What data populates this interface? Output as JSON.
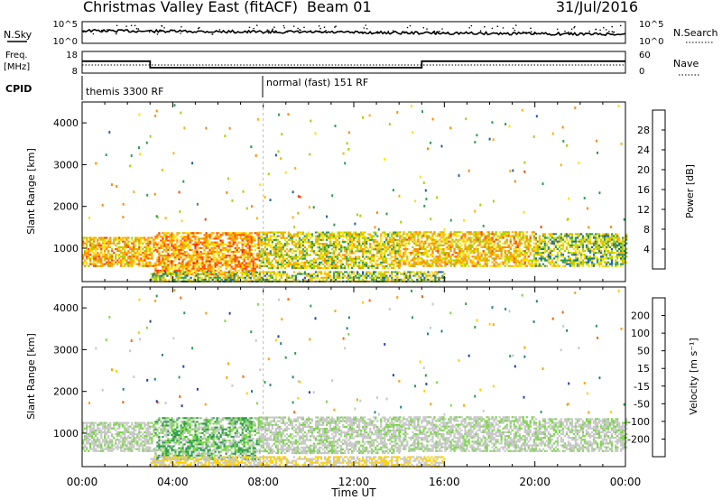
{
  "header": {
    "station": "Christmas Valley East (fitACF)",
    "beam": "Beam 01",
    "date": "31/Jul/2016"
  },
  "nsky_panel": {
    "left_label": "N.Sky",
    "right_label": "N.Search",
    "y_ticks_left": [
      "10^5",
      "10^0"
    ],
    "y_ticks_right": [
      "10^5",
      "10^0"
    ]
  },
  "freq_panel": {
    "left_label_line1": "Freq.",
    "left_label_line2": "[MHz]",
    "right_label": "Nave",
    "y_ticks_left": [
      "18",
      "8"
    ],
    "y_ticks_right": [
      "60",
      "0"
    ]
  },
  "cpid_panel": {
    "label": "CPID",
    "segments": [
      "themis 3300 RF",
      "normal (fast) 151 RF"
    ]
  },
  "power_panel": {
    "ylabel": "Slant Range [km]",
    "colorbar_label": "Power [dB]",
    "colorbar_ticks": [
      "28",
      "24",
      "20",
      "16",
      "12",
      "8",
      "4"
    ],
    "colorbar_colors": [
      "#e8000b",
      "#ff4400",
      "#ff8800",
      "#ffb000",
      "#ffe000",
      "#a8d000",
      "#2e9a50",
      "#1f5fa0",
      "#0000ff"
    ]
  },
  "velocity_panel": {
    "ylabel": "Slant Range [km]",
    "colorbar_label": "Velocity [m s⁻¹]",
    "colorbar_ticks": [
      "200",
      "100",
      "50",
      "15",
      "-15",
      "-50",
      "-100",
      "-200"
    ],
    "colorbar_colors": [
      "#0000c8",
      "#1e3fb0",
      "#2a7f7f",
      "#2e9a50",
      "#7cd64a",
      "#c8c8c8",
      "#ffd000",
      "#ffa000",
      "#ff6000",
      "#e80000"
    ]
  },
  "x_axis": {
    "label": "Time UT",
    "tick_labels": [
      "00:00",
      "04:00",
      "08:00",
      "12:00",
      "16:00",
      "20:00",
      "00:00"
    ]
  },
  "chart_data": {
    "type": "heatmap",
    "title": "Christmas Valley East (fitACF) Beam 01 31/Jul/2016",
    "xlabel": "Time UT",
    "ylabel": "Slant Range [km]",
    "x_range_hours": [
      0,
      24
    ],
    "y_range_km": [
      200,
      4500
    ],
    "y_ticks_km": [
      1000,
      2000,
      3000,
      4000
    ],
    "frequency_mhz": [
      {
        "start_h": 0,
        "end_h": 3.0,
        "value": 13.5
      },
      {
        "start_h": 3.0,
        "end_h": 15.0,
        "value": 10.5
      },
      {
        "start_h": 15.0,
        "end_h": 24,
        "value": 13.5
      }
    ],
    "cpid": [
      {
        "start_h": 0,
        "end_h": 8.0,
        "name": "themis 3300 RF"
      },
      {
        "start_h": 8.0,
        "end_h": 24,
        "name": "normal (fast) 151 RF"
      }
    ],
    "power_db_range": [
      0,
      30
    ],
    "velocity_ms_range": [
      -200,
      200
    ],
    "scatter_regions": [
      {
        "t_start": 0.0,
        "t_end": 3.2,
        "r_start": 550,
        "r_end": 1250,
        "power_db": 18,
        "velocity": 0
      },
      {
        "t_start": 3.2,
        "t_end": 7.8,
        "r_start": 350,
        "r_end": 1350,
        "power_db": 20,
        "velocity": 30
      },
      {
        "t_start": 7.8,
        "t_end": 14.0,
        "r_start": 500,
        "r_end": 1400,
        "power_db": 14,
        "velocity": 0
      },
      {
        "t_start": 14.0,
        "t_end": 20.0,
        "r_start": 550,
        "r_end": 1400,
        "power_db": 17,
        "velocity": 0
      },
      {
        "t_start": 20.0,
        "t_end": 24.0,
        "r_start": 550,
        "r_end": 1350,
        "power_db": 12,
        "velocity": 0
      },
      {
        "t_start": 3.0,
        "t_end": 16.0,
        "r_start": 180,
        "r_end": 420,
        "power_db": 12,
        "velocity": -40
      }
    ]
  }
}
